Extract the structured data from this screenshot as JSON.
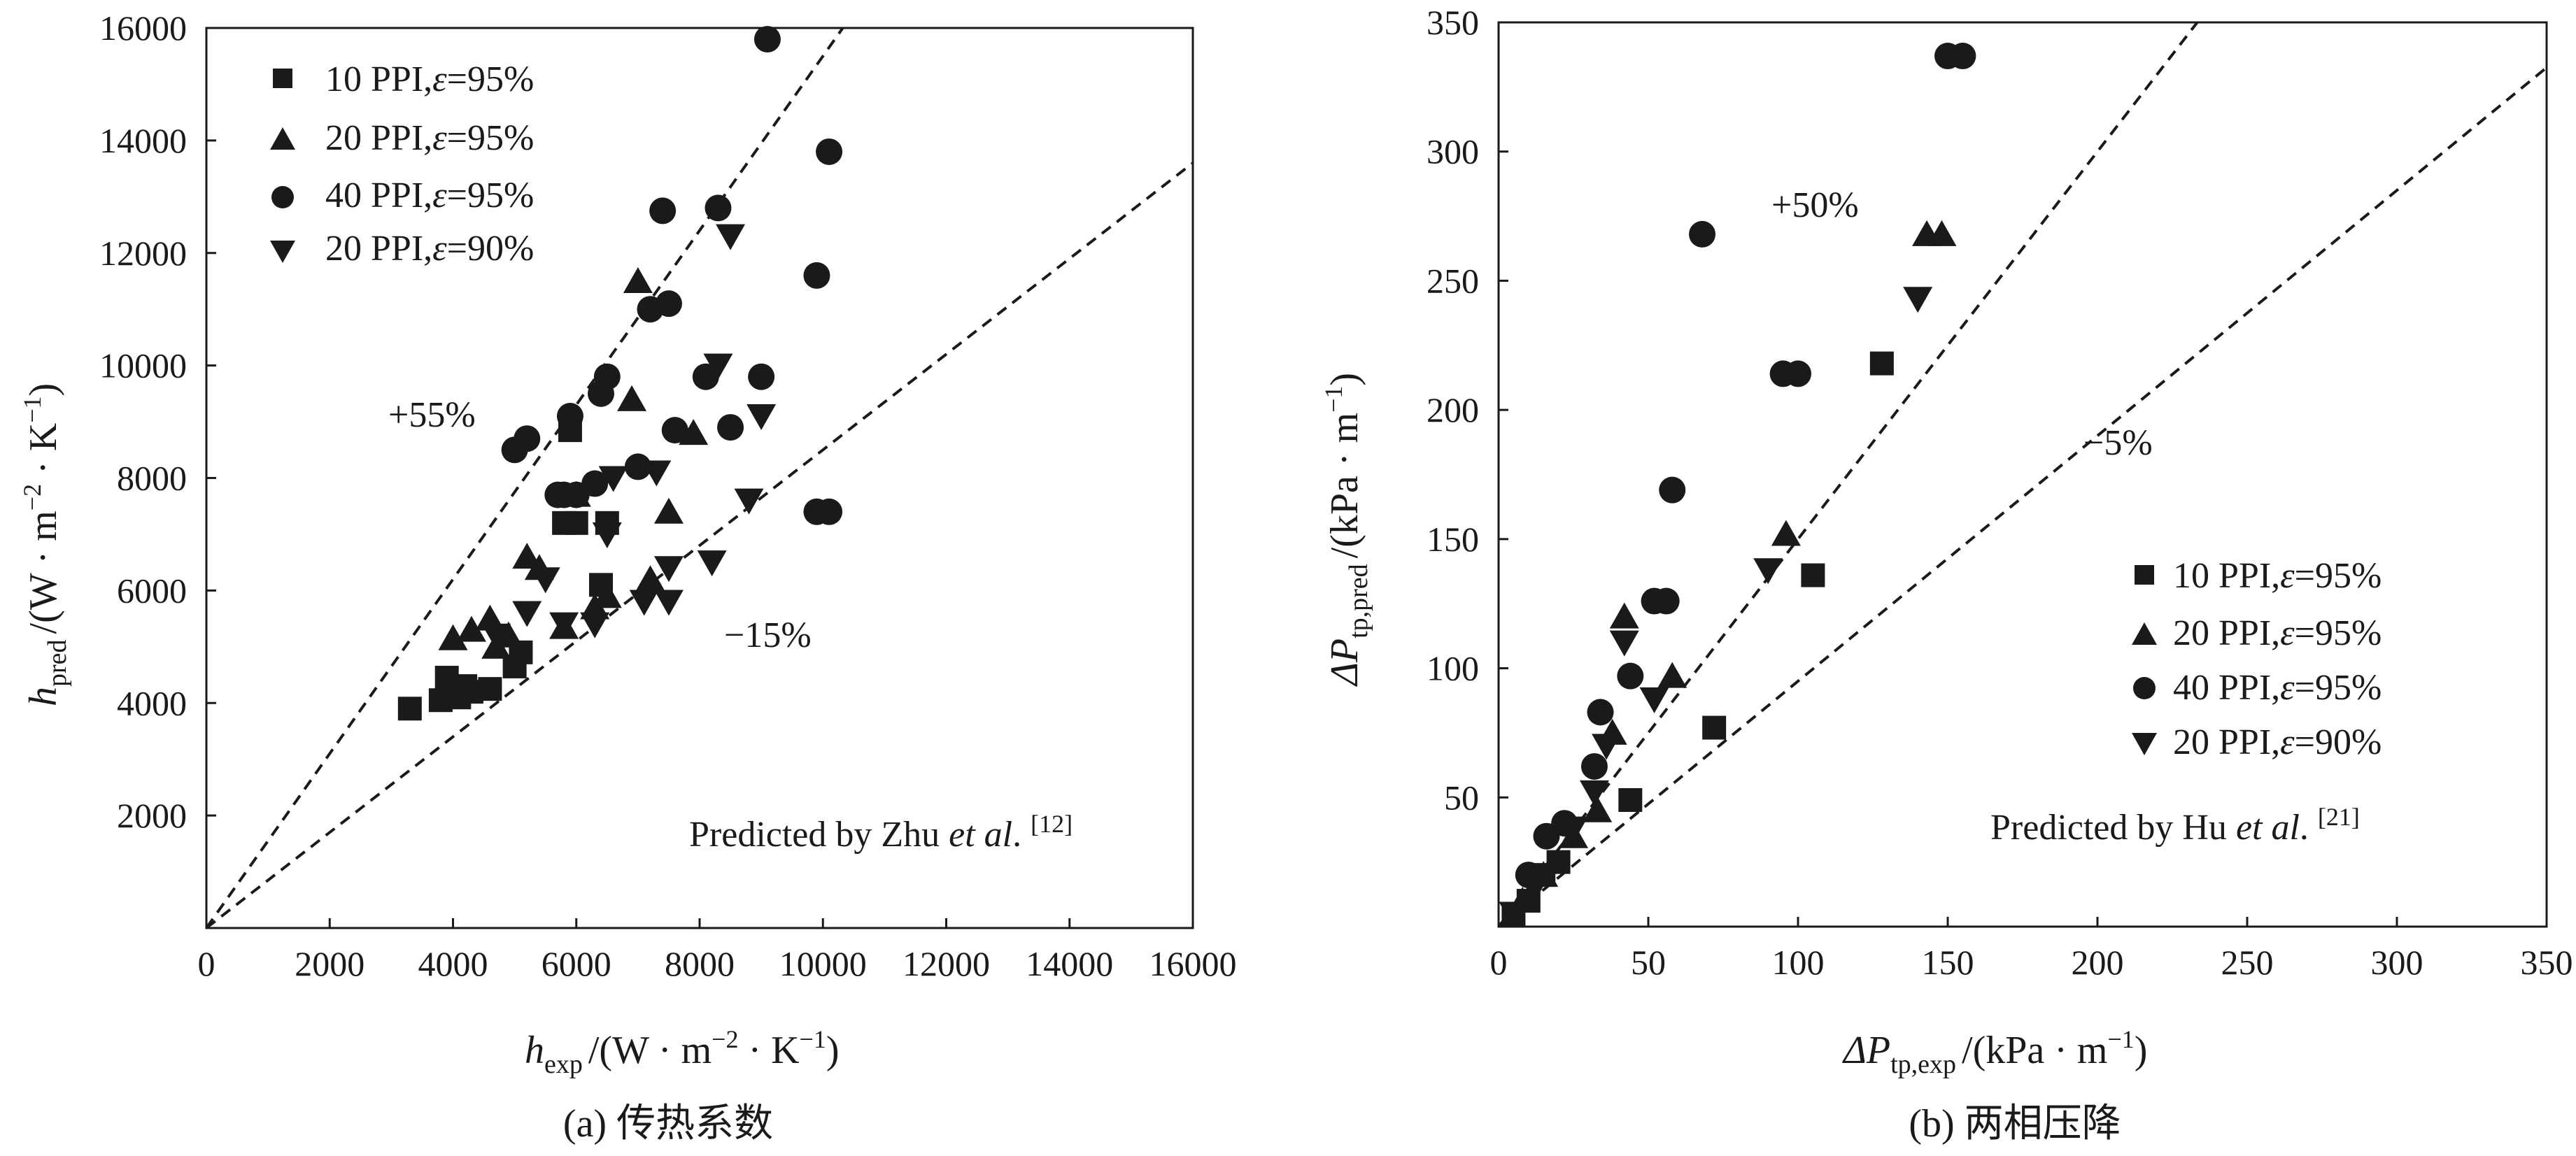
{
  "chart_data": [
    {
      "type": "scatter",
      "caption": "(a) 传热系数",
      "xlabel": {
        "sym": "h",
        "sub": "exp",
        "unit": "/(W · m",
        "e1": "−2",
        "mid": " · K",
        "e2": "−1",
        "end": ")"
      },
      "ylabel": {
        "sym": "h",
        "sub": "pred",
        "unit": "/(W · m",
        "e1": "−2",
        "mid": " · K",
        "e2": "−1",
        "end": ")"
      },
      "xlim": [
        0,
        16000
      ],
      "ylim": [
        0,
        16000
      ],
      "xticks": [
        "0",
        "2000",
        "4000",
        "6000",
        "8000",
        "10000",
        "12000",
        "14000",
        "16000"
      ],
      "yticks": [
        "2000",
        "4000",
        "6000",
        "8000",
        "10000",
        "12000",
        "14000",
        "16000"
      ],
      "xtick_values": [
        0,
        2000,
        4000,
        6000,
        8000,
        10000,
        12000,
        14000,
        16000
      ],
      "ytick_values": [
        2000,
        4000,
        6000,
        8000,
        10000,
        12000,
        14000,
        16000
      ],
      "reference_lines": [
        {
          "label": "+55%",
          "slope": 1.55
        },
        {
          "label": "−15%",
          "slope": 0.85
        }
      ],
      "credit": {
        "pre": "Predicted by Zhu ",
        "em": "et al",
        "post": ". ",
        "ref": "[12]"
      },
      "series": [
        {
          "name": "10 PPI,ε=95%",
          "name_pre": "10 PPI,",
          "name_eps": "ε",
          "name_post": "=95%",
          "marker": "square",
          "points": [
            [
              3300,
              3900
            ],
            [
              3800,
              4050
            ],
            [
              3900,
              4450
            ],
            [
              4100,
              4100
            ],
            [
              4300,
              4200
            ],
            [
              4600,
              4250
            ],
            [
              5000,
              4650
            ],
            [
              5100,
              4900
            ],
            [
              5800,
              7200
            ],
            [
              5900,
              8850
            ],
            [
              6000,
              7200
            ],
            [
              6500,
              7200
            ],
            [
              6400,
              6100
            ],
            [
              4200,
              4300
            ]
          ]
        },
        {
          "name": "20 PPI,ε=95%",
          "name_pre": "20 PPI,",
          "name_eps": "ε",
          "name_post": "=95%",
          "marker": "triangle-up",
          "points": [
            [
              4000,
              5150
            ],
            [
              4300,
              5300
            ],
            [
              4600,
              5500
            ],
            [
              4700,
              5000
            ],
            [
              4900,
              5200
            ],
            [
              5200,
              6600
            ],
            [
              5400,
              6400
            ],
            [
              5800,
              5350
            ],
            [
              6000,
              7700
            ],
            [
              6300,
              5700
            ],
            [
              6500,
              5900
            ],
            [
              6900,
              9400
            ],
            [
              7000,
              11500
            ],
            [
              7200,
              6200
            ],
            [
              7500,
              7400
            ],
            [
              7900,
              8800
            ]
          ]
        },
        {
          "name": "40 PPI,ε=95%",
          "name_pre": "40 PPI,",
          "name_eps": "ε",
          "name_post": "=95%",
          "marker": "circle",
          "points": [
            [
              5000,
              8500
            ],
            [
              5200,
              8700
            ],
            [
              5700,
              7700
            ],
            [
              5800,
              7700
            ],
            [
              5900,
              9100
            ],
            [
              6000,
              7700
            ],
            [
              6300,
              7900
            ],
            [
              6400,
              9500
            ],
            [
              6500,
              9800
            ],
            [
              7000,
              8200
            ],
            [
              7200,
              11000
            ],
            [
              7400,
              12750
            ],
            [
              7500,
              11100
            ],
            [
              7600,
              8850
            ],
            [
              8100,
              9800
            ],
            [
              8300,
              12800
            ],
            [
              8500,
              8900
            ],
            [
              9000,
              9800
            ],
            [
              9100,
              15800
            ],
            [
              9900,
              11600
            ],
            [
              9900,
              7400
            ],
            [
              10100,
              7400
            ],
            [
              10100,
              13800
            ]
          ]
        },
        {
          "name": "20 PPI,ε=90%",
          "name_pre": "20 PPI,",
          "name_eps": "ε",
          "name_post": "=90%",
          "marker": "triangle-down",
          "points": [
            [
              4700,
              5200
            ],
            [
              5200,
              5600
            ],
            [
              5500,
              6200
            ],
            [
              5800,
              5400
            ],
            [
              6300,
              5400
            ],
            [
              6500,
              7000
            ],
            [
              6600,
              8000
            ],
            [
              7100,
              5800
            ],
            [
              7300,
              8100
            ],
            [
              7500,
              6400
            ],
            [
              7500,
              5800
            ],
            [
              8200,
              6500
            ],
            [
              8300,
              10000
            ],
            [
              8500,
              12300
            ],
            [
              8800,
              7600
            ],
            [
              9000,
              9100
            ]
          ]
        }
      ]
    },
    {
      "type": "scatter",
      "caption": "(b) 两相压降",
      "xlabel": {
        "sym": "ΔP",
        "sub": "tp,exp",
        "unit": "/(kPa · m",
        "e1": "−1",
        "end": ")"
      },
      "ylabel": {
        "sym": "ΔP",
        "sub": "tp,pred",
        "unit": "/(kPa · m",
        "e1": "−1",
        "end": ")"
      },
      "xlim": [
        0,
        350
      ],
      "ylim": [
        0,
        350
      ],
      "xticks": [
        "0",
        "50",
        "100",
        "150",
        "200",
        "250",
        "300",
        "350"
      ],
      "yticks": [
        "50",
        "100",
        "150",
        "200",
        "250",
        "300",
        "350"
      ],
      "xtick_values": [
        0,
        50,
        100,
        150,
        200,
        250,
        300,
        350
      ],
      "ytick_values": [
        50,
        100,
        150,
        200,
        250,
        300,
        350
      ],
      "reference_lines": [
        {
          "label": "+50%",
          "slope": 1.5
        },
        {
          "label": "−5%",
          "slope": 0.95
        }
      ],
      "credit": {
        "pre": "Predicted by Hu ",
        "em": "et al",
        "post": ". ",
        "ref": "[21]"
      },
      "series": [
        {
          "name": "10 PPI,ε=95%",
          "name_pre": "10 PPI,",
          "name_eps": "ε",
          "name_post": "=95%",
          "marker": "square",
          "points": [
            [
              5,
              5
            ],
            [
              10,
              10
            ],
            [
              15,
              20
            ],
            [
              20,
              25
            ],
            [
              44,
              49
            ],
            [
              72,
              77
            ],
            [
              105,
              136
            ],
            [
              128,
              218
            ]
          ]
        },
        {
          "name": "20 PPI,ε=95%",
          "name_pre": "20 PPI,",
          "name_eps": "ε",
          "name_post": "=95%",
          "marker": "triangle-up",
          "points": [
            [
              8,
              10
            ],
            [
              15,
              20
            ],
            [
              25,
              35
            ],
            [
              33,
              45
            ],
            [
              38,
              75
            ],
            [
              42,
              120
            ],
            [
              58,
              97
            ],
            [
              96,
              152
            ],
            [
              143,
              268
            ],
            [
              148,
              268
            ]
          ]
        },
        {
          "name": "40 PPI,ε=95%",
          "name_pre": "40 PPI,",
          "name_eps": "ε",
          "name_post": "=95%",
          "marker": "circle",
          "points": [
            [
              10,
              20
            ],
            [
              16,
              35
            ],
            [
              22,
              40
            ],
            [
              32,
              62
            ],
            [
              34,
              83
            ],
            [
              44,
              97
            ],
            [
              52,
              126
            ],
            [
              56,
              126
            ],
            [
              58,
              169
            ],
            [
              68,
              268
            ],
            [
              95,
              214
            ],
            [
              100,
              214
            ],
            [
              150,
              337
            ],
            [
              155,
              337
            ]
          ]
        },
        {
          "name": "20 PPI,ε=90%",
          "name_pre": "20 PPI,",
          "name_eps": "ε",
          "name_post": "=90%",
          "marker": "triangle-down",
          "points": [
            [
              5,
              5
            ],
            [
              12,
              15
            ],
            [
              25,
              38
            ],
            [
              32,
              52
            ],
            [
              36,
              70
            ],
            [
              42,
              110
            ],
            [
              52,
              88
            ],
            [
              90,
              138
            ],
            [
              140,
              243
            ]
          ]
        }
      ]
    }
  ]
}
